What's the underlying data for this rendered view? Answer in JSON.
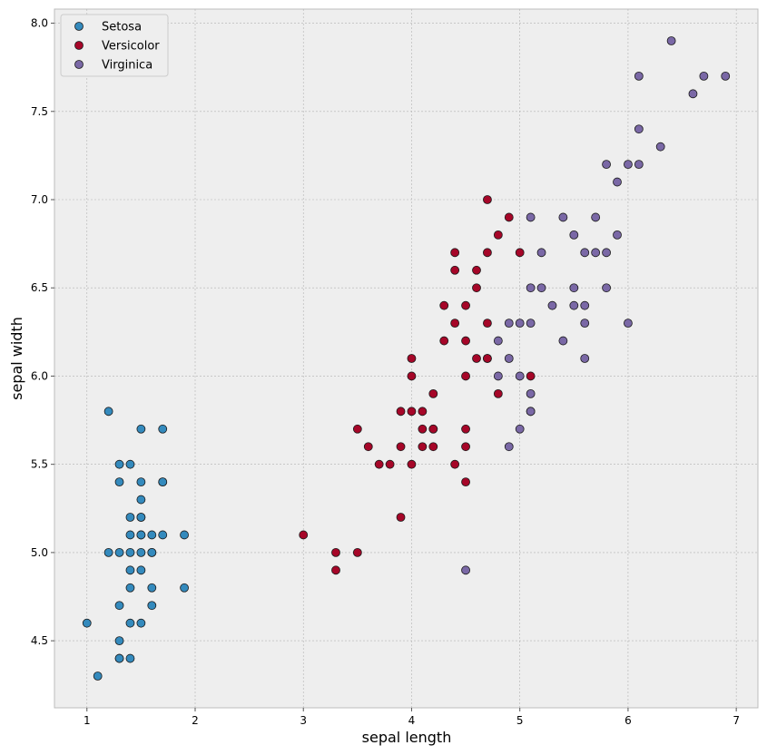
{
  "chart_data": {
    "type": "scatter",
    "title": "",
    "xlabel": "sepal length",
    "ylabel": "sepal width",
    "xlim": [
      0.7,
      7.2
    ],
    "ylim": [
      4.12,
      8.08
    ],
    "xticks": [
      1,
      2,
      3,
      4,
      5,
      6,
      7
    ],
    "xtick_labels": [
      "1",
      "2",
      "3",
      "4",
      "5",
      "6",
      "7"
    ],
    "yticks": [
      4.5,
      5.0,
      5.5,
      6.0,
      6.5,
      7.0,
      7.5,
      8.0
    ],
    "ytick_labels": [
      "4.5",
      "5.0",
      "5.5",
      "6.0",
      "6.5",
      "7.0",
      "7.5",
      "8.0"
    ],
    "grid": true,
    "legend": "top-left",
    "background": "#eeeeee",
    "series": [
      {
        "name": "Setosa",
        "color": "#348abd",
        "x": [
          1.0,
          1.1,
          1.2,
          1.2,
          1.3,
          1.3,
          1.3,
          1.3,
          1.3,
          1.3,
          1.3,
          1.4,
          1.4,
          1.4,
          1.4,
          1.4,
          1.4,
          1.4,
          1.4,
          1.5,
          1.5,
          1.5,
          1.5,
          1.5,
          1.5,
          1.5,
          1.5,
          1.5,
          1.5,
          1.6,
          1.6,
          1.6,
          1.6,
          1.6,
          1.7,
          1.7,
          1.7,
          1.7,
          1.9,
          1.9
        ],
        "y": [
          4.6,
          4.3,
          5.8,
          5.0,
          5.5,
          5.4,
          5.0,
          4.7,
          4.5,
          4.4,
          4.4,
          5.5,
          5.2,
          5.1,
          5.0,
          4.9,
          4.8,
          4.6,
          4.4,
          5.7,
          5.4,
          5.3,
          5.2,
          5.1,
          5.0,
          4.9,
          4.6,
          5.2,
          5.1,
          5.1,
          5.0,
          4.8,
          4.7,
          5.0,
          5.7,
          5.4,
          5.4,
          5.1,
          5.1,
          4.8
        ]
      },
      {
        "name": "Versicolor",
        "color": "#a60628",
        "x": [
          3.0,
          3.3,
          3.3,
          3.5,
          3.5,
          3.6,
          3.7,
          3.8,
          3.9,
          3.9,
          3.9,
          4.0,
          4.0,
          4.0,
          4.0,
          4.1,
          4.1,
          4.1,
          4.2,
          4.2,
          4.2,
          4.2,
          4.3,
          4.3,
          4.4,
          4.4,
          4.4,
          4.4,
          4.5,
          4.5,
          4.5,
          4.5,
          4.5,
          4.5,
          4.6,
          4.6,
          4.6,
          4.7,
          4.7,
          4.7,
          4.7,
          4.7,
          4.8,
          4.8,
          4.9,
          5.0,
          5.1,
          5.1
        ],
        "y": [
          5.1,
          5.0,
          4.9,
          5.7,
          5.0,
          5.6,
          5.5,
          5.5,
          5.8,
          5.6,
          5.2,
          6.1,
          6.0,
          5.8,
          5.5,
          5.8,
          5.7,
          5.6,
          5.9,
          5.7,
          5.7,
          5.6,
          6.4,
          6.2,
          6.7,
          6.6,
          6.3,
          5.5,
          6.4,
          6.2,
          6.0,
          5.7,
          5.6,
          5.4,
          6.6,
          6.5,
          6.1,
          7.0,
          6.7,
          6.3,
          6.1,
          6.1,
          6.8,
          5.9,
          6.9,
          6.7,
          6.0,
          5.8
        ]
      },
      {
        "name": "Virginica",
        "color": "#7a68a6",
        "x": [
          4.5,
          4.8,
          4.8,
          4.9,
          4.9,
          4.9,
          5.0,
          5.0,
          5.0,
          5.1,
          5.1,
          5.1,
          5.1,
          5.1,
          5.2,
          5.2,
          5.3,
          5.4,
          5.4,
          5.5,
          5.5,
          5.5,
          5.6,
          5.6,
          5.6,
          5.6,
          5.7,
          5.7,
          5.8,
          5.8,
          5.8,
          5.9,
          5.9,
          6.0,
          6.0,
          6.1,
          6.1,
          6.1,
          6.3,
          6.4,
          6.6,
          6.7,
          6.9
        ],
        "y": [
          4.9,
          6.2,
          6.0,
          6.3,
          6.1,
          5.6,
          6.3,
          6.0,
          5.7,
          6.9,
          6.5,
          6.3,
          5.9,
          5.8,
          6.7,
          6.5,
          6.4,
          6.9,
          6.2,
          6.8,
          6.5,
          6.4,
          6.7,
          6.4,
          6.3,
          6.1,
          6.9,
          6.7,
          7.2,
          6.7,
          6.5,
          7.1,
          6.8,
          7.2,
          6.3,
          7.7,
          7.4,
          7.2,
          7.3,
          7.9,
          7.6,
          7.7,
          7.7
        ]
      }
    ]
  }
}
